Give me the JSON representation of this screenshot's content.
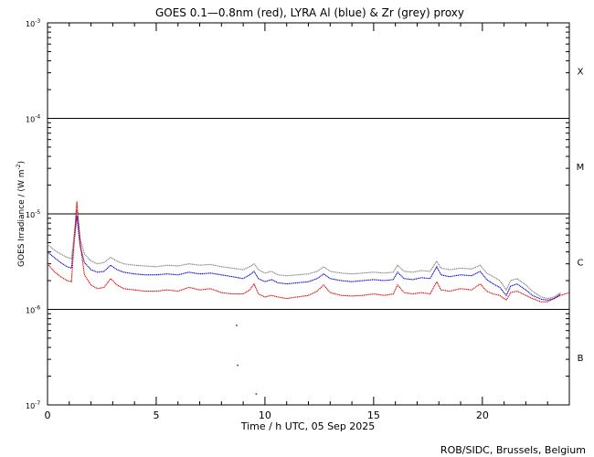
{
  "chart_data": {
    "type": "line",
    "title": "GOES 0.1—0.8nm (red), LYRA Al (blue) & Zr (grey) proxy",
    "xlabel": "Time / h UTC, 05 Sep 2025",
    "ylabel": "GOES Irradiance / (W m",
    "ylabel_exp": "-2",
    "ylabel_close": ")",
    "credit": "ROB/SIDC, Brussels, Belgium",
    "x_range": [
      0,
      24
    ],
    "y_range": [
      1e-07,
      0.001
    ],
    "y_scale": "log",
    "x_ticks": [
      {
        "value": 0,
        "label": "0"
      },
      {
        "value": 5,
        "label": "5"
      },
      {
        "value": 10,
        "label": "10"
      },
      {
        "value": 15,
        "label": "15"
      },
      {
        "value": 20,
        "label": "20"
      }
    ],
    "y_ticks": [
      {
        "value": 1e-07,
        "base": "10",
        "exp": "-7"
      },
      {
        "value": 1e-06,
        "base": "10",
        "exp": "-6"
      },
      {
        "value": 1e-05,
        "base": "10",
        "exp": "-5"
      },
      {
        "value": 0.0001,
        "base": "10",
        "exp": "-4"
      },
      {
        "value": 0.001,
        "base": "10",
        "exp": "-3"
      }
    ],
    "flare_levels": [
      1e-06,
      1e-05,
      0.0001
    ],
    "flare_classes": [
      {
        "label": "X",
        "value": 0.000316
      },
      {
        "label": "M",
        "value": 3.16e-05
      },
      {
        "label": "C",
        "value": 3.16e-06
      },
      {
        "label": "B",
        "value": 3.16e-07
      }
    ],
    "series": [
      {
        "color": "#808080",
        "points": [
          [
            0,
            4.8e-06
          ],
          [
            0.3,
            4.2e-06
          ],
          [
            0.6,
            3.8e-06
          ],
          [
            0.9,
            3.5e-06
          ],
          [
            1.1,
            3.4e-06
          ],
          [
            1.35,
            1.1e-05
          ],
          [
            1.5,
            5.5e-06
          ],
          [
            1.7,
            3.8e-06
          ],
          [
            2.0,
            3.2e-06
          ],
          [
            2.3,
            3e-06
          ],
          [
            2.6,
            3.1e-06
          ],
          [
            2.9,
            3.5e-06
          ],
          [
            3.2,
            3.2e-06
          ],
          [
            3.5,
            3e-06
          ],
          [
            4.0,
            2.9e-06
          ],
          [
            4.5,
            2.85e-06
          ],
          [
            5.0,
            2.8e-06
          ],
          [
            5.5,
            2.9e-06
          ],
          [
            6.0,
            2.85e-06
          ],
          [
            6.5,
            3e-06
          ],
          [
            7.0,
            2.9e-06
          ],
          [
            7.5,
            2.95e-06
          ],
          [
            8.0,
            2.8e-06
          ],
          [
            8.5,
            2.7e-06
          ],
          [
            9.0,
            2.6e-06
          ],
          [
            9.3,
            2.8e-06
          ],
          [
            9.5,
            3e-06
          ],
          [
            9.7,
            2.6e-06
          ],
          [
            10.0,
            2.4e-06
          ],
          [
            10.3,
            2.5e-06
          ],
          [
            10.6,
            2.3e-06
          ],
          [
            11.0,
            2.25e-06
          ],
          [
            11.5,
            2.3e-06
          ],
          [
            12.0,
            2.35e-06
          ],
          [
            12.4,
            2.5e-06
          ],
          [
            12.7,
            2.8e-06
          ],
          [
            13.0,
            2.5e-06
          ],
          [
            13.5,
            2.4e-06
          ],
          [
            14.0,
            2.35e-06
          ],
          [
            14.5,
            2.4e-06
          ],
          [
            15.0,
            2.45e-06
          ],
          [
            15.5,
            2.4e-06
          ],
          [
            15.9,
            2.45e-06
          ],
          [
            16.1,
            2.9e-06
          ],
          [
            16.4,
            2.5e-06
          ],
          [
            16.8,
            2.45e-06
          ],
          [
            17.2,
            2.55e-06
          ],
          [
            17.6,
            2.5e-06
          ],
          [
            17.9,
            3.2e-06
          ],
          [
            18.1,
            2.7e-06
          ],
          [
            18.5,
            2.6e-06
          ],
          [
            19.0,
            2.7e-06
          ],
          [
            19.5,
            2.65e-06
          ],
          [
            19.9,
            2.9e-06
          ],
          [
            20.2,
            2.4e-06
          ],
          [
            20.5,
            2.2e-06
          ],
          [
            20.8,
            2e-06
          ],
          [
            21.1,
            1.6e-06
          ],
          [
            21.3,
            2e-06
          ],
          [
            21.6,
            2.1e-06
          ],
          [
            22.0,
            1.8e-06
          ],
          [
            22.3,
            1.55e-06
          ],
          [
            22.7,
            1.35e-06
          ],
          [
            23.0,
            1.3e-06
          ],
          [
            23.3,
            1.35e-06
          ],
          [
            23.6,
            1.5e-06
          ]
        ]
      },
      {
        "color": "#0000cc",
        "points": [
          [
            0,
            4e-06
          ],
          [
            0.3,
            3.5e-06
          ],
          [
            0.6,
            3.1e-06
          ],
          [
            0.9,
            2.8e-06
          ],
          [
            1.1,
            2.7e-06
          ],
          [
            1.35,
            9.5e-06
          ],
          [
            1.5,
            4.6e-06
          ],
          [
            1.7,
            3.1e-06
          ],
          [
            2.0,
            2.6e-06
          ],
          [
            2.3,
            2.45e-06
          ],
          [
            2.6,
            2.5e-06
          ],
          [
            2.9,
            2.9e-06
          ],
          [
            3.2,
            2.6e-06
          ],
          [
            3.5,
            2.45e-06
          ],
          [
            4.0,
            2.35e-06
          ],
          [
            4.5,
            2.3e-06
          ],
          [
            5.0,
            2.3e-06
          ],
          [
            5.5,
            2.35e-06
          ],
          [
            6.0,
            2.3e-06
          ],
          [
            6.5,
            2.45e-06
          ],
          [
            7.0,
            2.35e-06
          ],
          [
            7.5,
            2.4e-06
          ],
          [
            8.0,
            2.3e-06
          ],
          [
            8.5,
            2.2e-06
          ],
          [
            9.0,
            2.1e-06
          ],
          [
            9.3,
            2.3e-06
          ],
          [
            9.5,
            2.5e-06
          ],
          [
            9.7,
            2.1e-06
          ],
          [
            10.0,
            1.95e-06
          ],
          [
            10.3,
            2.05e-06
          ],
          [
            10.6,
            1.9e-06
          ],
          [
            11.0,
            1.85e-06
          ],
          [
            11.5,
            1.9e-06
          ],
          [
            12.0,
            1.95e-06
          ],
          [
            12.4,
            2.1e-06
          ],
          [
            12.7,
            2.35e-06
          ],
          [
            13.0,
            2.1e-06
          ],
          [
            13.5,
            2e-06
          ],
          [
            14.0,
            1.95e-06
          ],
          [
            14.5,
            2e-06
          ],
          [
            15.0,
            2.05e-06
          ],
          [
            15.5,
            2e-06
          ],
          [
            15.9,
            2.05e-06
          ],
          [
            16.1,
            2.45e-06
          ],
          [
            16.4,
            2.1e-06
          ],
          [
            16.8,
            2.05e-06
          ],
          [
            17.2,
            2.15e-06
          ],
          [
            17.6,
            2.1e-06
          ],
          [
            17.9,
            2.8e-06
          ],
          [
            18.1,
            2.3e-06
          ],
          [
            18.5,
            2.2e-06
          ],
          [
            19.0,
            2.3e-06
          ],
          [
            19.5,
            2.25e-06
          ],
          [
            19.9,
            2.5e-06
          ],
          [
            20.2,
            2.05e-06
          ],
          [
            20.5,
            1.85e-06
          ],
          [
            20.8,
            1.7e-06
          ],
          [
            21.1,
            1.4e-06
          ],
          [
            21.3,
            1.75e-06
          ],
          [
            21.6,
            1.85e-06
          ],
          [
            22.0,
            1.6e-06
          ],
          [
            22.3,
            1.4e-06
          ],
          [
            22.7,
            1.28e-06
          ],
          [
            23.0,
            1.25e-06
          ],
          [
            23.3,
            1.3e-06
          ],
          [
            23.6,
            1.45e-06
          ]
        ]
      },
      {
        "color": "#dd0000",
        "points": [
          [
            0,
            3e-06
          ],
          [
            0.3,
            2.5e-06
          ],
          [
            0.6,
            2.2e-06
          ],
          [
            0.9,
            2e-06
          ],
          [
            1.1,
            1.95e-06
          ],
          [
            1.35,
            1.35e-05
          ],
          [
            1.5,
            5e-06
          ],
          [
            1.7,
            2.3e-06
          ],
          [
            2.0,
            1.8e-06
          ],
          [
            2.3,
            1.65e-06
          ],
          [
            2.6,
            1.7e-06
          ],
          [
            2.9,
            2.1e-06
          ],
          [
            3.2,
            1.8e-06
          ],
          [
            3.5,
            1.65e-06
          ],
          [
            4.0,
            1.6e-06
          ],
          [
            4.5,
            1.55e-06
          ],
          [
            5.0,
            1.55e-06
          ],
          [
            5.5,
            1.6e-06
          ],
          [
            6.0,
            1.55e-06
          ],
          [
            6.5,
            1.7e-06
          ],
          [
            7.0,
            1.6e-06
          ],
          [
            7.5,
            1.65e-06
          ],
          [
            8.0,
            1.5e-06
          ],
          [
            8.5,
            1.45e-06
          ],
          [
            9.0,
            1.45e-06
          ],
          [
            9.3,
            1.6e-06
          ],
          [
            9.5,
            1.85e-06
          ],
          [
            9.7,
            1.45e-06
          ],
          [
            10.0,
            1.35e-06
          ],
          [
            10.3,
            1.4e-06
          ],
          [
            10.6,
            1.35e-06
          ],
          [
            11.0,
            1.3e-06
          ],
          [
            11.5,
            1.35e-06
          ],
          [
            12.0,
            1.4e-06
          ],
          [
            12.4,
            1.55e-06
          ],
          [
            12.7,
            1.8e-06
          ],
          [
            13.0,
            1.5e-06
          ],
          [
            13.5,
            1.4e-06
          ],
          [
            14.0,
            1.38e-06
          ],
          [
            14.5,
            1.4e-06
          ],
          [
            15.0,
            1.45e-06
          ],
          [
            15.5,
            1.4e-06
          ],
          [
            15.9,
            1.45e-06
          ],
          [
            16.1,
            1.8e-06
          ],
          [
            16.4,
            1.5e-06
          ],
          [
            16.8,
            1.45e-06
          ],
          [
            17.2,
            1.5e-06
          ],
          [
            17.6,
            1.45e-06
          ],
          [
            17.9,
            1.95e-06
          ],
          [
            18.1,
            1.6e-06
          ],
          [
            18.5,
            1.55e-06
          ],
          [
            19.0,
            1.65e-06
          ],
          [
            19.5,
            1.6e-06
          ],
          [
            19.9,
            1.85e-06
          ],
          [
            20.2,
            1.55e-06
          ],
          [
            20.5,
            1.45e-06
          ],
          [
            20.8,
            1.4e-06
          ],
          [
            21.1,
            1.25e-06
          ],
          [
            21.3,
            1.5e-06
          ],
          [
            21.6,
            1.55e-06
          ],
          [
            22.0,
            1.4e-06
          ],
          [
            22.3,
            1.3e-06
          ],
          [
            22.7,
            1.2e-06
          ],
          [
            23.0,
            1.2e-06
          ],
          [
            23.3,
            1.3e-06
          ],
          [
            23.6,
            1.4e-06
          ],
          [
            24.0,
            1.5e-06
          ]
        ]
      }
    ],
    "outliers": [
      {
        "color": "#dd0000",
        "x": 8.7,
        "y": 6.8e-07
      },
      {
        "color": "#dd0000",
        "x": 8.75,
        "y": 2.6e-07
      },
      {
        "color": "#dd0000",
        "x": 9.6,
        "y": 1.3e-07
      }
    ]
  }
}
